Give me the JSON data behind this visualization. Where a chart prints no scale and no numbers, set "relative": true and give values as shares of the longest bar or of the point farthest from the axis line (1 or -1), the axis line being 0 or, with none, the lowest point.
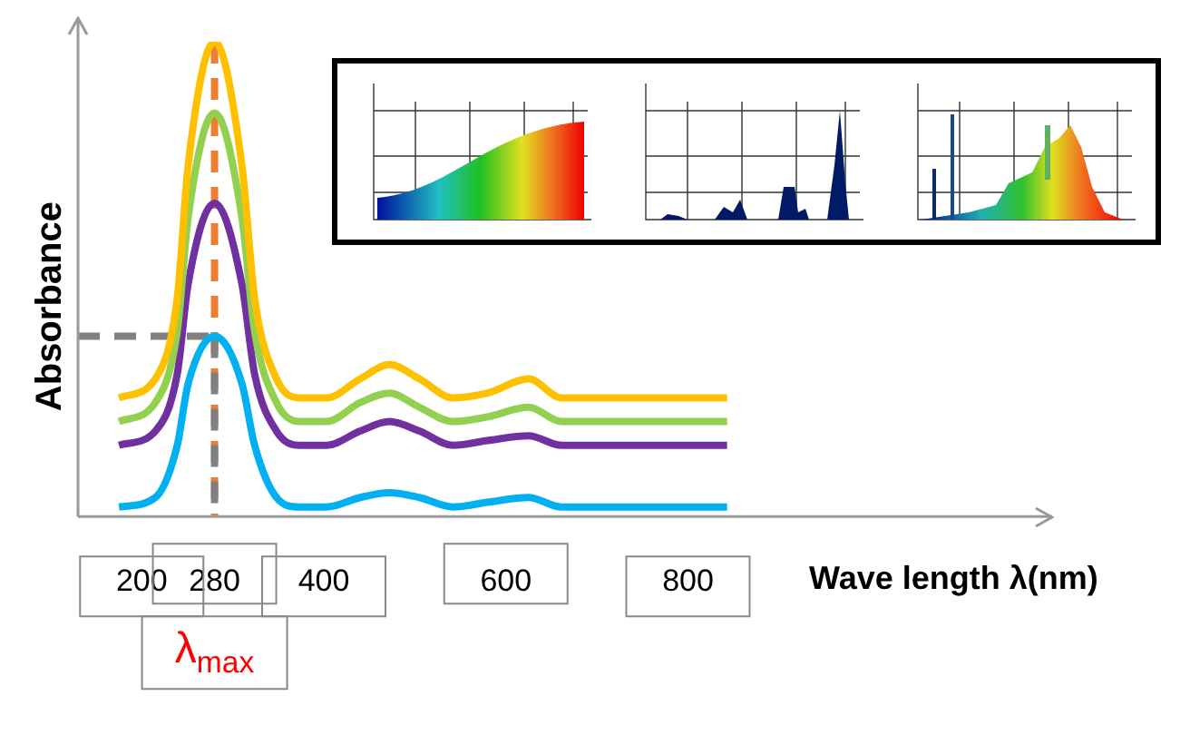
{
  "chart_data": {
    "type": "line",
    "relative": true,
    "xlabel": "Wave length λ(nm)",
    "ylabel": "Absorbance",
    "marker": "none",
    "xlim": [
      130,
      1200
    ],
    "xticks": [
      200,
      280,
      400,
      600,
      800
    ],
    "annotations": [
      {
        "text": "λ$_{max}$",
        "x": 280,
        "y": 0
      }
    ],
    "series": [
      {
        "color": "#ffc000",
        "x": [
          175,
          215,
          239,
          251,
          280,
          310,
          324,
          348,
          373,
          403,
          440,
          472,
          505,
          542,
          580,
          625,
          661,
          700,
          843
        ],
        "values": [
          0.25,
          0.29,
          0.46,
          0.74,
          1,
          0.74,
          0.46,
          0.29,
          0.25,
          0.25,
          0.29,
          0.32,
          0.29,
          0.25,
          0.26,
          0.29,
          0.25,
          0.25,
          0.25
        ]
      },
      {
        "color": "#92d050",
        "x": [
          175,
          215,
          239,
          251,
          280,
          310,
          324,
          348,
          373,
          403,
          440,
          472,
          505,
          542,
          580,
          625,
          661,
          700,
          843
        ],
        "values": [
          0.2,
          0.24,
          0.39,
          0.63,
          0.85,
          0.63,
          0.39,
          0.24,
          0.2,
          0.2,
          0.24,
          0.26,
          0.23,
          0.2,
          0.21,
          0.23,
          0.2,
          0.2,
          0.2
        ]
      },
      {
        "color": "#7030a0",
        "x": [
          175,
          215,
          239,
          251,
          280,
          310,
          324,
          348,
          373,
          403,
          440,
          472,
          505,
          542,
          580,
          625,
          661,
          700,
          843
        ],
        "values": [
          0.15,
          0.18,
          0.3,
          0.49,
          0.66,
          0.49,
          0.3,
          0.18,
          0.15,
          0.15,
          0.18,
          0.2,
          0.18,
          0.15,
          0.16,
          0.17,
          0.15,
          0.15,
          0.15
        ]
      },
      {
        "color": "#00b0f0",
        "x": [
          175,
          215,
          239,
          251,
          280,
          310,
          324,
          348,
          373,
          403,
          440,
          472,
          505,
          542,
          580,
          625,
          661,
          700,
          843
        ],
        "values": [
          0.02,
          0.04,
          0.15,
          0.28,
          0.38,
          0.28,
          0.15,
          0.04,
          0.02,
          0.02,
          0.04,
          0.05,
          0.04,
          0.02,
          0.03,
          0.04,
          0.02,
          0.02,
          0.02
        ]
      },
      {
        "color": "#808080",
        "line_style": "dashed",
        "x": [
          130,
          280
        ],
        "values": [
          0.38,
          0.38
        ]
      },
      {
        "color": "#808080",
        "line_style": "dashed",
        "x": [
          280,
          280
        ],
        "values": [
          0.38,
          0
        ]
      },
      {
        "color": "#ed7d31",
        "line_style": "dashed",
        "x": [
          280,
          280
        ],
        "values": [
          1,
          0
        ]
      }
    ]
  }
}
